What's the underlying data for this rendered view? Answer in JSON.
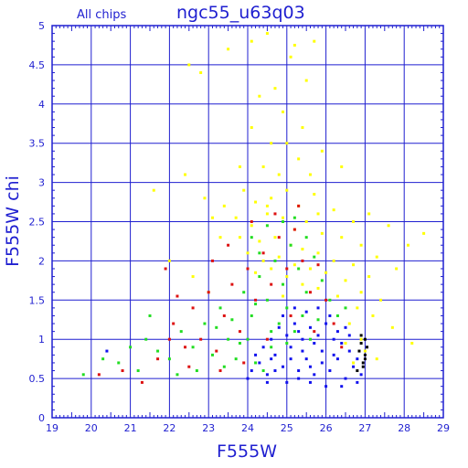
{
  "chart_data": {
    "type": "scatter",
    "title": "ngc55_u63q03",
    "subtitle": "All chips",
    "xlabel": "F555W",
    "ylabel": "F555W chi",
    "xlim": [
      19,
      29
    ],
    "ylim": [
      0,
      5
    ],
    "x_ticks": [
      "19",
      "20",
      "21",
      "22",
      "23",
      "24",
      "25",
      "26",
      "27",
      "28",
      "29"
    ],
    "y_ticks": [
      "0",
      "0.5",
      "1",
      "1.5",
      "2",
      "2.5",
      "3",
      "3.5",
      "4",
      "4.5",
      "5"
    ],
    "grid": true,
    "colors": {
      "axis": "#1f1fd0",
      "grid": "#1f1fd0",
      "yellow": "#ffff00",
      "green": "#22dd22",
      "red": "#dd1111",
      "blue": "#1111ee",
      "black": "#000000"
    },
    "series": [
      {
        "color": "#ffff00",
        "points": [
          [
            22.5,
            4.5
          ],
          [
            22.8,
            4.4
          ],
          [
            23.5,
            4.7
          ],
          [
            24.1,
            4.8
          ],
          [
            24.5,
            4.9
          ],
          [
            25.2,
            4.75
          ],
          [
            25.7,
            4.8
          ],
          [
            24.7,
            4.2
          ],
          [
            25.1,
            4.6
          ],
          [
            24.3,
            4.1
          ],
          [
            25.5,
            4.3
          ],
          [
            24.9,
            3.9
          ],
          [
            24.1,
            3.7
          ],
          [
            25.4,
            3.7
          ],
          [
            25.0,
            3.5
          ],
          [
            24.6,
            3.5
          ],
          [
            25.9,
            3.4
          ],
          [
            26.4,
            3.2
          ],
          [
            23.8,
            3.2
          ],
          [
            24.4,
            3.2
          ],
          [
            25.3,
            3.3
          ],
          [
            24.8,
            3.1
          ],
          [
            25.6,
            3.1
          ],
          [
            22.4,
            3.1
          ],
          [
            21.6,
            2.9
          ],
          [
            22.9,
            2.8
          ],
          [
            23.4,
            2.7
          ],
          [
            23.9,
            2.9
          ],
          [
            24.2,
            2.75
          ],
          [
            24.6,
            2.8
          ],
          [
            25.0,
            2.9
          ],
          [
            25.3,
            2.7
          ],
          [
            25.7,
            2.85
          ],
          [
            26.2,
            2.65
          ],
          [
            26.7,
            2.5
          ],
          [
            27.1,
            2.6
          ],
          [
            27.6,
            2.45
          ],
          [
            28.1,
            2.2
          ],
          [
            28.5,
            2.35
          ],
          [
            23.1,
            2.55
          ],
          [
            23.7,
            2.55
          ],
          [
            24.1,
            2.45
          ],
          [
            24.5,
            2.6
          ],
          [
            24.9,
            2.55
          ],
          [
            25.2,
            2.4
          ],
          [
            25.5,
            2.5
          ],
          [
            25.9,
            2.35
          ],
          [
            26.4,
            2.3
          ],
          [
            26.9,
            2.2
          ],
          [
            27.3,
            2.05
          ],
          [
            27.8,
            1.9
          ],
          [
            23.3,
            2.3
          ],
          [
            23.8,
            2.3
          ],
          [
            24.3,
            2.25
          ],
          [
            24.7,
            2.3
          ],
          [
            25.1,
            2.2
          ],
          [
            25.4,
            2.15
          ],
          [
            25.8,
            2.1
          ],
          [
            26.2,
            2.0
          ],
          [
            26.7,
            1.95
          ],
          [
            27.1,
            1.8
          ],
          [
            24.0,
            2.1
          ],
          [
            24.4,
            2.0
          ],
          [
            24.8,
            2.05
          ],
          [
            25.2,
            1.95
          ],
          [
            25.6,
            1.9
          ],
          [
            26.0,
            1.85
          ],
          [
            26.5,
            1.75
          ],
          [
            26.9,
            1.6
          ],
          [
            27.4,
            1.5
          ],
          [
            24.2,
            1.85
          ],
          [
            24.6,
            1.9
          ],
          [
            25.0,
            1.8
          ],
          [
            25.4,
            1.7
          ],
          [
            25.8,
            1.65
          ],
          [
            26.3,
            1.55
          ],
          [
            26.8,
            1.4
          ],
          [
            27.2,
            1.3
          ],
          [
            27.7,
            1.15
          ],
          [
            28.2,
            0.95
          ],
          [
            26.6,
            1.2
          ],
          [
            26.9,
            1.0
          ],
          [
            27.0,
            0.85
          ],
          [
            26.7,
            0.7
          ],
          [
            26.5,
            0.95
          ],
          [
            27.3,
            0.75
          ],
          [
            22.0,
            2.0
          ],
          [
            22.6,
            1.8
          ],
          [
            23.0,
            1.6
          ],
          [
            24.5,
            2.7
          ],
          [
            25.8,
            2.6
          ],
          [
            24.9,
            1.55
          ]
        ]
      },
      {
        "color": "#22dd22",
        "points": [
          [
            19.8,
            0.55
          ],
          [
            20.3,
            0.75
          ],
          [
            20.7,
            0.7
          ],
          [
            21.2,
            0.6
          ],
          [
            21.4,
            1.0
          ],
          [
            21.7,
            0.85
          ],
          [
            22.0,
            0.75
          ],
          [
            22.3,
            1.1
          ],
          [
            22.6,
            0.9
          ],
          [
            22.9,
            1.2
          ],
          [
            23.1,
            0.8
          ],
          [
            23.3,
            1.4
          ],
          [
            23.5,
            1.0
          ],
          [
            23.7,
            0.75
          ],
          [
            23.9,
            1.6
          ],
          [
            24.1,
            1.3
          ],
          [
            24.3,
            1.8
          ],
          [
            24.5,
            1.5
          ],
          [
            24.7,
            2.0
          ],
          [
            24.9,
            1.7
          ],
          [
            25.1,
            2.2
          ],
          [
            25.3,
            1.9
          ],
          [
            25.5,
            1.6
          ],
          [
            25.7,
            2.05
          ],
          [
            25.9,
            1.75
          ],
          [
            26.1,
            1.5
          ],
          [
            26.3,
            1.3
          ],
          [
            26.5,
            1.4
          ],
          [
            24.0,
            1.0
          ],
          [
            24.2,
            0.7
          ],
          [
            24.4,
            0.6
          ],
          [
            24.6,
            0.9
          ],
          [
            24.8,
            1.2
          ],
          [
            25.0,
            1.4
          ],
          [
            25.2,
            1.1
          ],
          [
            25.4,
            1.3
          ],
          [
            25.6,
            1.0
          ],
          [
            23.6,
            1.25
          ],
          [
            23.8,
            0.95
          ],
          [
            24.1,
            2.3
          ],
          [
            24.5,
            2.45
          ],
          [
            24.9,
            2.5
          ],
          [
            25.2,
            2.55
          ],
          [
            24.3,
            2.1
          ],
          [
            25.5,
            2.3
          ],
          [
            23.4,
            0.65
          ],
          [
            22.7,
            0.6
          ],
          [
            22.2,
            0.55
          ],
          [
            21.0,
            0.9
          ],
          [
            21.5,
            1.3
          ],
          [
            24.6,
            1.1
          ],
          [
            25.0,
            0.95
          ],
          [
            25.8,
            1.25
          ],
          [
            24.2,
            1.45
          ],
          [
            23.2,
            1.15
          ]
        ]
      },
      {
        "color": "#dd1111",
        "points": [
          [
            20.2,
            0.55
          ],
          [
            20.8,
            0.6
          ],
          [
            21.3,
            0.45
          ],
          [
            21.7,
            0.75
          ],
          [
            22.1,
            1.2
          ],
          [
            22.4,
            0.9
          ],
          [
            22.6,
            1.4
          ],
          [
            22.8,
            1.0
          ],
          [
            23.0,
            1.6
          ],
          [
            23.2,
            0.85
          ],
          [
            23.4,
            1.3
          ],
          [
            23.6,
            1.7
          ],
          [
            23.8,
            1.1
          ],
          [
            24.0,
            1.9
          ],
          [
            24.2,
            1.5
          ],
          [
            24.4,
            2.1
          ],
          [
            24.6,
            1.7
          ],
          [
            24.8,
            2.3
          ],
          [
            25.0,
            1.9
          ],
          [
            25.2,
            2.4
          ],
          [
            25.4,
            2.0
          ],
          [
            25.6,
            1.6
          ],
          [
            25.8,
            1.95
          ],
          [
            26.0,
            1.5
          ],
          [
            26.2,
            1.2
          ],
          [
            21.9,
            1.9
          ],
          [
            22.2,
            1.55
          ],
          [
            23.1,
            2.0
          ],
          [
            23.5,
            2.2
          ],
          [
            24.1,
            2.5
          ],
          [
            24.7,
            2.6
          ],
          [
            25.3,
            2.7
          ],
          [
            22.5,
            0.65
          ],
          [
            23.3,
            0.6
          ],
          [
            24.5,
            1.0
          ],
          [
            25.1,
            1.3
          ],
          [
            25.7,
            1.1
          ],
          [
            26.4,
            0.9
          ],
          [
            23.9,
            0.7
          ],
          [
            22.0,
            1.0
          ]
        ]
      },
      {
        "color": "#1111ee",
        "points": [
          [
            20.4,
            0.85
          ],
          [
            24.1,
            0.6
          ],
          [
            24.3,
            0.7
          ],
          [
            24.5,
            0.55
          ],
          [
            24.7,
            0.8
          ],
          [
            24.9,
            0.65
          ],
          [
            25.1,
            0.9
          ],
          [
            25.3,
            0.6
          ],
          [
            25.5,
            0.75
          ],
          [
            25.7,
            0.55
          ],
          [
            25.9,
            0.85
          ],
          [
            26.1,
            0.6
          ],
          [
            26.3,
            0.75
          ],
          [
            26.5,
            0.5
          ],
          [
            26.7,
            0.65
          ],
          [
            26.9,
            0.55
          ],
          [
            24.6,
            1.0
          ],
          [
            24.8,
            1.15
          ],
          [
            25.0,
            1.05
          ],
          [
            25.2,
            1.2
          ],
          [
            25.4,
            1.0
          ],
          [
            25.6,
            1.15
          ],
          [
            25.8,
            1.05
          ],
          [
            26.0,
            1.2
          ],
          [
            26.2,
            1.0
          ],
          [
            26.4,
            0.95
          ],
          [
            26.6,
            0.85
          ],
          [
            24.4,
            0.9
          ],
          [
            24.2,
            0.8
          ],
          [
            25.5,
            1.35
          ],
          [
            25.8,
            1.4
          ],
          [
            26.1,
            1.3
          ],
          [
            25.2,
            1.4
          ],
          [
            24.9,
            1.3
          ],
          [
            25.6,
            0.45
          ],
          [
            26.0,
            0.4
          ],
          [
            26.4,
            0.4
          ],
          [
            26.8,
            0.45
          ],
          [
            24.0,
            0.5
          ],
          [
            24.5,
            0.45
          ],
          [
            25.0,
            0.45
          ],
          [
            25.3,
            0.5
          ],
          [
            25.7,
            0.95
          ],
          [
            26.3,
            1.1
          ],
          [
            26.6,
            1.05
          ],
          [
            26.8,
            0.75
          ],
          [
            25.1,
            0.75
          ],
          [
            25.4,
            0.85
          ],
          [
            25.9,
            0.7
          ],
          [
            26.2,
            0.8
          ],
          [
            24.7,
            0.6
          ],
          [
            25.6,
            0.65
          ],
          [
            26.5,
            1.15
          ],
          [
            25.3,
            1.1
          ],
          [
            24.6,
            0.75
          ]
        ]
      },
      {
        "color": "#000000",
        "points": [
          [
            26.9,
            0.95
          ],
          [
            27.0,
            0.8
          ],
          [
            27.0,
            1.0
          ],
          [
            26.95,
            0.7
          ],
          [
            26.85,
            0.85
          ],
          [
            27.05,
            0.9
          ],
          [
            26.9,
            1.05
          ],
          [
            27.0,
            0.75
          ],
          [
            26.8,
            0.6
          ],
          [
            26.95,
            0.65
          ]
        ]
      }
    ]
  }
}
